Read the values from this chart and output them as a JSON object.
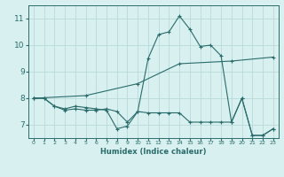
{
  "xlabel": "Humidex (Indice chaleur)",
  "background_color": "#d8f0f0",
  "grid_color": "#b8dada",
  "line_color": "#2a6b6b",
  "xlim": [
    -0.5,
    23.5
  ],
  "ylim": [
    6.5,
    11.5
  ],
  "yticks": [
    7,
    8,
    9,
    10,
    11
  ],
  "xticks": [
    0,
    1,
    2,
    3,
    4,
    5,
    6,
    7,
    8,
    9,
    10,
    11,
    12,
    13,
    14,
    15,
    16,
    17,
    18,
    19,
    20,
    21,
    22,
    23
  ],
  "lines": [
    {
      "x": [
        0,
        1,
        2,
        3,
        4,
        5,
        6,
        7,
        8,
        9,
        10,
        11,
        12,
        13,
        14,
        15,
        16,
        17,
        18,
        19,
        20,
        21,
        22,
        23
      ],
      "y": [
        8.0,
        8.0,
        7.7,
        7.6,
        7.7,
        7.65,
        7.6,
        7.55,
        6.85,
        6.95,
        7.5,
        9.5,
        10.4,
        10.5,
        11.1,
        10.6,
        9.95,
        10.0,
        9.6,
        7.1,
        8.0,
        6.6,
        6.6,
        6.85
      ]
    },
    {
      "x": [
        0,
        1,
        2,
        3,
        4,
        5,
        6,
        7,
        8,
        9,
        10,
        11,
        12,
        13,
        14,
        15,
        16,
        17,
        18,
        19,
        20,
        21,
        22,
        23
      ],
      "y": [
        8.0,
        8.0,
        7.7,
        7.55,
        7.6,
        7.55,
        7.55,
        7.6,
        7.5,
        7.1,
        7.5,
        7.45,
        7.45,
        7.45,
        7.45,
        7.1,
        7.1,
        7.1,
        7.1,
        7.1,
        8.0,
        6.6,
        6.6,
        6.85
      ]
    },
    {
      "x": [
        0,
        5,
        10,
        14,
        19,
        23
      ],
      "y": [
        8.0,
        8.1,
        8.55,
        9.3,
        9.4,
        9.55
      ]
    }
  ]
}
